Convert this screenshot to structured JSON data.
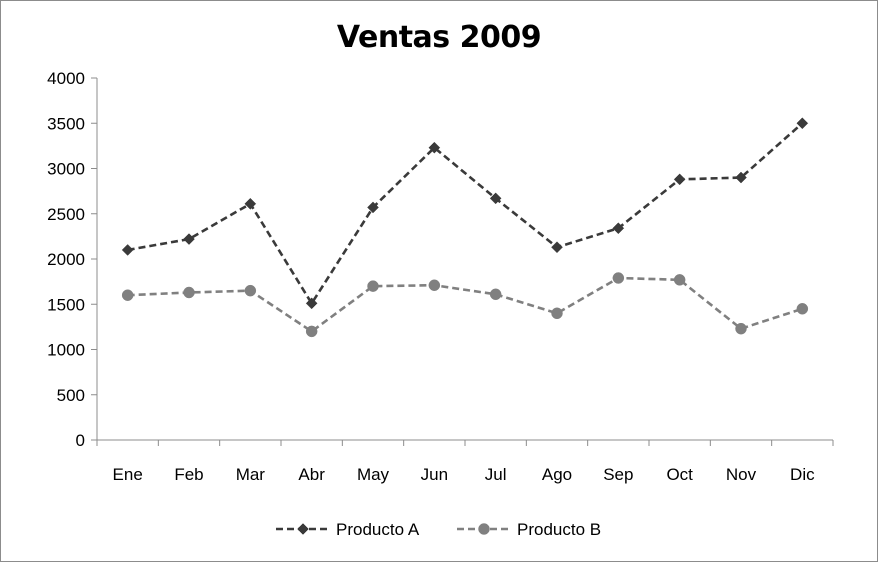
{
  "chart_data": {
    "type": "line",
    "title": "Ventas 2009",
    "xlabel": "",
    "ylabel": "",
    "categories": [
      "Ene",
      "Feb",
      "Mar",
      "Abr",
      "May",
      "Jun",
      "Jul",
      "Ago",
      "Sep",
      "Oct",
      "Nov",
      "Dic"
    ],
    "ylim": [
      0,
      4000
    ],
    "yticks": [
      "0",
      "500",
      "1000",
      "1500",
      "2000",
      "2500",
      "3000",
      "3500",
      "4000"
    ],
    "grid": false,
    "legend_position": "bottom",
    "series": [
      {
        "name": "Producto A",
        "values": [
          2100,
          2220,
          2610,
          1510,
          2570,
          3230,
          2670,
          2130,
          2340,
          2880,
          2900,
          3500
        ],
        "color": "#3a3a3a",
        "marker": "diamond",
        "line_style": "dashed"
      },
      {
        "name": "Producto B",
        "values": [
          1600,
          1630,
          1650,
          1200,
          1700,
          1710,
          1610,
          1400,
          1790,
          1770,
          1230,
          1450
        ],
        "color": "#808080",
        "marker": "circle",
        "line_style": "dashed"
      }
    ]
  }
}
